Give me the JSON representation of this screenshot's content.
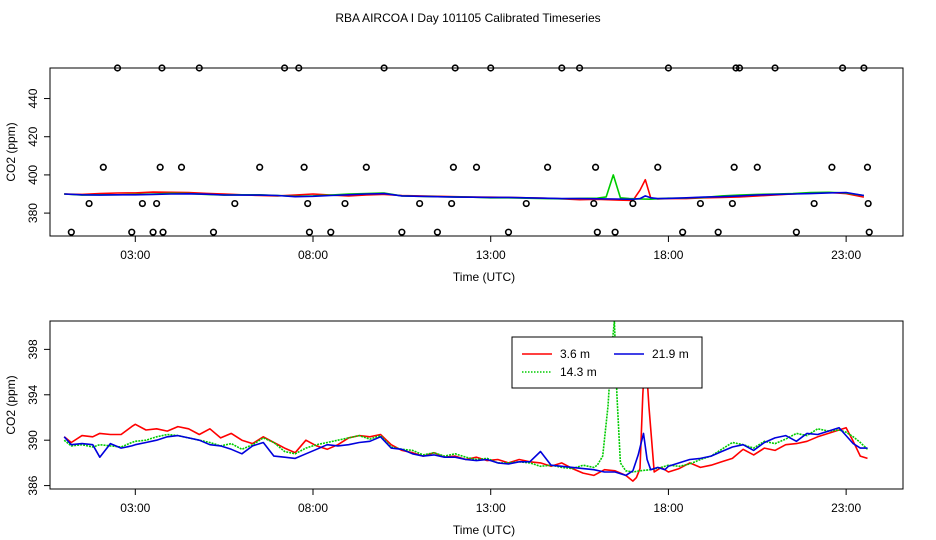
{
  "page": {
    "title": "RBA AIRCOA I  Day 101105  Calibrated Timeseries"
  },
  "chart_data": [
    {
      "type": "line",
      "title": "",
      "xlabel": "Time (UTC)",
      "ylabel": "CO2 (ppm)",
      "xlim": [
        0.6,
        24.6
      ],
      "ylim": [
        368,
        456
      ],
      "x_ticks": [
        3,
        8,
        13,
        18,
        23
      ],
      "x_tick_labels": [
        "03:00",
        "08:00",
        "13:00",
        "18:00",
        "23:00"
      ],
      "y_ticks": [
        380,
        400,
        420,
        440
      ],
      "y_tick_labels": [
        "380",
        "400",
        "420",
        "440"
      ],
      "series": [
        {
          "name": "3.6 m",
          "color": "#ff0000",
          "x": [
            1,
            1.5,
            2,
            2.5,
            3,
            3.5,
            4,
            4.5,
            5,
            5.5,
            6,
            6.5,
            7,
            7.5,
            8,
            8.5,
            9,
            9.5,
            10,
            10.5,
            11,
            11.5,
            12,
            12.5,
            13,
            13.5,
            14,
            14.5,
            15,
            15.5,
            16,
            16.3,
            16.6,
            17,
            17.2,
            17.35,
            17.5,
            17.7,
            18,
            18.5,
            19,
            19.5,
            20,
            20.5,
            21,
            21.5,
            22,
            22.5,
            23,
            23.5
          ],
          "y": [
            390,
            389.8,
            390.2,
            390.5,
            390.6,
            391,
            390.9,
            390.8,
            390.3,
            390,
            389.6,
            389.2,
            389,
            389.5,
            390,
            389.4,
            389,
            389.5,
            389.8,
            389.2,
            389,
            388.8,
            388.6,
            388.4,
            388.3,
            388.2,
            388,
            387.8,
            387.5,
            387,
            387.2,
            387,
            386.8,
            386.6,
            392,
            397.5,
            388,
            387.4,
            387.6,
            387.6,
            388,
            388.2,
            388.5,
            389,
            389.5,
            390,
            390.5,
            390.8,
            390.2,
            388.4
          ]
        },
        {
          "name": "14.3 m",
          "color": "#00cc00",
          "x": [
            1,
            1.5,
            2,
            2.5,
            3,
            3.5,
            4,
            4.5,
            5,
            5.5,
            6,
            6.5,
            7,
            7.5,
            8,
            8.5,
            9,
            9.5,
            10,
            10.5,
            11,
            11.5,
            12,
            12.5,
            13,
            13.5,
            14,
            14.5,
            15,
            15.5,
            16,
            16.25,
            16.45,
            16.65,
            16.9,
            17.2,
            17.5,
            17.8,
            18,
            18.5,
            19,
            19.5,
            20,
            20.5,
            21,
            21.5,
            22,
            22.5,
            23,
            23.5
          ],
          "y": [
            390,
            389.4,
            389.6,
            389.6,
            389.8,
            390,
            390.3,
            390.2,
            389.8,
            389.4,
            389.6,
            389.6,
            389.2,
            388.8,
            389,
            389.5,
            390,
            390.2,
            390.5,
            389,
            388.8,
            388.6,
            388.5,
            388.3,
            388,
            388,
            387.8,
            387.6,
            387.5,
            387.7,
            387.8,
            388.5,
            400,
            388,
            387.6,
            387.4,
            387.3,
            387.6,
            387.8,
            387.9,
            388.2,
            389,
            389.5,
            389.8,
            390,
            390.2,
            390.8,
            390.9,
            390.5,
            389.2
          ]
        },
        {
          "name": "21.9 m",
          "color": "#0000dd",
          "x": [
            1,
            1.5,
            2,
            2.5,
            3,
            3.5,
            4,
            4.5,
            5,
            5.5,
            6,
            6.5,
            7,
            7.5,
            8,
            8.5,
            9,
            9.5,
            10,
            10.5,
            11,
            11.5,
            12,
            12.5,
            13,
            13.5,
            14,
            14.5,
            15,
            15.5,
            16,
            16.5,
            17,
            17.2,
            17.35,
            17.5,
            17.7,
            18,
            18.5,
            19,
            19.5,
            20,
            20.5,
            21,
            21.5,
            22,
            22.5,
            23,
            23.5
          ],
          "y": [
            390,
            389.6,
            389.4,
            389.6,
            389.6,
            389.8,
            390,
            390.1,
            389.9,
            389.5,
            389.4,
            389.4,
            389.2,
            388.6,
            388.8,
            389.2,
            389.6,
            390,
            390.2,
            389,
            388.8,
            388.6,
            388.4,
            388.3,
            388.2,
            388.2,
            388,
            387.8,
            387.6,
            387.6,
            387.5,
            387.4,
            387.2,
            387.6,
            389,
            388,
            387.6,
            387.7,
            388,
            388.4,
            388.6,
            389,
            389.5,
            389.8,
            390,
            390.2,
            390.6,
            390.8,
            389.2
          ]
        }
      ],
      "outliers": {
        "x": [
          1.2,
          1.7,
          2.1,
          2.5,
          2.9,
          3.2,
          3.5,
          3.6,
          3.7,
          3.75,
          3.78,
          4.3,
          4.8,
          5.2,
          5.8,
          6.5,
          7.2,
          7.6,
          7.75,
          7.85,
          7.9,
          8.5,
          8.9,
          9.5,
          10,
          10.5,
          11,
          11.5,
          11.9,
          11.95,
          12,
          12.6,
          13,
          13.5,
          14,
          14.6,
          15,
          15.5,
          15.9,
          15.95,
          16,
          16.5,
          17,
          17.7,
          18,
          18.4,
          18.9,
          19.4,
          19.8,
          19.85,
          19.9,
          20,
          20.5,
          21,
          21.6,
          22.1,
          22.6,
          22.9,
          23.5,
          23.6,
          23.62,
          23.65
        ],
        "y": [
          370,
          385,
          404,
          456,
          370,
          385,
          370,
          385,
          404,
          456,
          370,
          404,
          456,
          370,
          385,
          404,
          456,
          456,
          404,
          385,
          370,
          370,
          385,
          404,
          456,
          370,
          385,
          370,
          385,
          404,
          456,
          404,
          456,
          370,
          385,
          404,
          456,
          456,
          385,
          404,
          370,
          370,
          385,
          404,
          456,
          370,
          385,
          370,
          385,
          404,
          456,
          456,
          404,
          456,
          370,
          385,
          404,
          456,
          456,
          404,
          385,
          370
        ]
      }
    },
    {
      "type": "line",
      "title": "",
      "xlabel": "Time (UTC)",
      "ylabel": "CO2 (ppm)",
      "xlim": [
        0.6,
        24.6
      ],
      "ylim": [
        385.7,
        400.5
      ],
      "x_ticks": [
        3,
        8,
        13,
        18,
        23
      ],
      "x_tick_labels": [
        "03:00",
        "08:00",
        "13:00",
        "18:00",
        "23:00"
      ],
      "y_ticks": [
        386,
        390,
        394,
        398
      ],
      "y_tick_labels": [
        "386",
        "390",
        "394",
        "398"
      ],
      "legend": {
        "position": "top-center",
        "entries": [
          {
            "label": "3.6 m",
            "color": "#ff0000",
            "dash": "solid"
          },
          {
            "label": "21.9 m",
            "color": "#0000dd",
            "dash": "solid"
          },
          {
            "label": "14.3 m",
            "color": "#00cc00",
            "dash": "dotted"
          }
        ]
      },
      "series": [
        {
          "name": "3.6 m",
          "color": "#ff0000",
          "x": [
            1,
            1.2,
            1.5,
            1.8,
            2,
            2.3,
            2.6,
            2.9,
            3,
            3.3,
            3.6,
            3.9,
            4.2,
            4.5,
            4.8,
            5.1,
            5.4,
            5.7,
            6,
            6.3,
            6.6,
            6.9,
            7.2,
            7.5,
            7.8,
            8.1,
            8.4,
            8.7,
            9,
            9.3,
            9.6,
            9.9,
            10.2,
            10.5,
            10.8,
            11.1,
            11.4,
            11.7,
            12,
            12.3,
            12.6,
            12.9,
            13.2,
            13.5,
            13.8,
            14.1,
            14.4,
            14.7,
            15,
            15.3,
            15.6,
            15.9,
            16.2,
            16.5,
            16.8,
            17,
            17.1,
            17.2,
            17.28,
            17.35,
            17.45,
            17.6,
            17.8,
            18,
            18.3,
            18.6,
            18.9,
            19.2,
            19.5,
            19.8,
            20.1,
            20.4,
            20.7,
            21,
            21.3,
            21.6,
            21.9,
            22.2,
            22.5,
            22.8,
            23,
            23.2,
            23.4,
            23.6
          ],
          "y": [
            390.3,
            389.8,
            390.4,
            390.3,
            390.6,
            390.5,
            390.5,
            391.2,
            391.4,
            390.9,
            391,
            390.8,
            391.2,
            391,
            390.5,
            391,
            390.2,
            390.6,
            390,
            389.7,
            390.3,
            389.8,
            389.3,
            388.9,
            390,
            389.5,
            389.2,
            389.6,
            390.2,
            390.4,
            390.3,
            390.5,
            389.6,
            389.1,
            388.9,
            388.6,
            388.9,
            388.5,
            388.6,
            388.3,
            388.5,
            388.2,
            388.3,
            388,
            388.3,
            388.1,
            388,
            387.7,
            388,
            387.5,
            387.1,
            386.9,
            387.4,
            387.3,
            386.9,
            386.4,
            386.7,
            387.5,
            394,
            398,
            393,
            387.2,
            387.6,
            387.2,
            387.5,
            388,
            387.6,
            387.8,
            388.1,
            388.4,
            389.2,
            388.7,
            389.3,
            389.1,
            389.6,
            389.7,
            389.9,
            390.3,
            390.6,
            390.9,
            391.1,
            389.9,
            388.6,
            388.4
          ]
        },
        {
          "name": "14.3 m",
          "color": "#00cc00",
          "x": [
            1,
            1.2,
            1.5,
            1.8,
            2,
            2.3,
            2.6,
            2.9,
            3,
            3.3,
            3.6,
            3.9,
            4.2,
            4.5,
            4.8,
            5.1,
            5.4,
            5.7,
            6,
            6.3,
            6.6,
            6.9,
            7.2,
            7.5,
            7.8,
            8.1,
            8.4,
            8.7,
            9,
            9.3,
            9.6,
            9.9,
            10.2,
            10.5,
            10.8,
            11.1,
            11.4,
            11.7,
            12,
            12.3,
            12.6,
            12.9,
            13.2,
            13.5,
            13.8,
            14.1,
            14.4,
            14.7,
            15,
            15.3,
            15.6,
            15.9,
            16,
            16.15,
            16.3,
            16.4,
            16.48,
            16.55,
            16.65,
            16.8,
            17,
            17.2,
            17.5,
            17.8,
            18,
            18.3,
            18.6,
            18.9,
            19.2,
            19.5,
            19.8,
            20.1,
            20.4,
            20.7,
            21,
            21.3,
            21.6,
            21.9,
            22.2,
            22.5,
            22.8,
            23,
            23.2,
            23.4,
            23.6
          ],
          "y": [
            390,
            389.5,
            389.6,
            389.4,
            389.6,
            389.5,
            389.4,
            389.8,
            389.9,
            390,
            390.3,
            390.5,
            390.4,
            390.2,
            390,
            389.8,
            389.5,
            389.7,
            389.2,
            389.6,
            390.2,
            389.8,
            389,
            388.8,
            389.3,
            389.6,
            389.8,
            390,
            390.2,
            390.4,
            390.1,
            390.4,
            389.4,
            389.2,
            389.1,
            388.7,
            388.9,
            388.6,
            388.8,
            388.5,
            388.3,
            388.4,
            388,
            388,
            388.1,
            388,
            387.7,
            387.8,
            387.6,
            387.5,
            387.8,
            387.6,
            387.8,
            388.6,
            393,
            398,
            400.5,
            394,
            388,
            387.3,
            387.2,
            387.3,
            387.4,
            387.6,
            387.8,
            387.7,
            387.9,
            388.3,
            388.6,
            389.2,
            389.8,
            389.6,
            389.3,
            389.9,
            389.7,
            390.1,
            390.6,
            390.4,
            391,
            390.8,
            390.9,
            390.7,
            390.3,
            389.8,
            389.2
          ]
        },
        {
          "name": "21.9 m",
          "color": "#0000dd",
          "x": [
            1,
            1.2,
            1.5,
            1.8,
            2,
            2.3,
            2.6,
            2.9,
            3,
            3.3,
            3.6,
            3.9,
            4.2,
            4.5,
            4.8,
            5.1,
            5.4,
            5.7,
            6,
            6.3,
            6.6,
            6.9,
            7.2,
            7.5,
            7.8,
            8.1,
            8.4,
            8.7,
            9,
            9.3,
            9.6,
            9.9,
            10.2,
            10.5,
            10.8,
            11.1,
            11.4,
            11.7,
            12,
            12.3,
            12.6,
            12.9,
            13.2,
            13.5,
            13.8,
            14.1,
            14.4,
            14.7,
            15,
            15.3,
            15.6,
            15.9,
            16.2,
            16.5,
            16.8,
            17,
            17.15,
            17.3,
            17.4,
            17.5,
            17.7,
            17.9,
            18,
            18.3,
            18.6,
            18.9,
            19.2,
            19.5,
            19.8,
            20.1,
            20.4,
            20.7,
            21,
            21.3,
            21.6,
            21.9,
            22.2,
            22.5,
            22.8,
            23,
            23.2,
            23.4,
            23.6
          ],
          "y": [
            390.3,
            389.6,
            389.7,
            389.6,
            388.5,
            389.7,
            389.3,
            389.5,
            389.6,
            389.8,
            390,
            390.3,
            390.4,
            390.2,
            390,
            389.6,
            389.5,
            389.2,
            388.8,
            389.5,
            389.8,
            388.6,
            388.5,
            388.4,
            388.8,
            389.2,
            389.6,
            389.5,
            389.6,
            389.8,
            389.9,
            390.3,
            389.3,
            389.2,
            388.8,
            388.6,
            388.7,
            388.5,
            388.5,
            388.3,
            388.2,
            388.3,
            388,
            387.9,
            388.1,
            388.1,
            389,
            387.8,
            387.7,
            387.6,
            387.5,
            387.4,
            387.2,
            387.2,
            386.9,
            387.3,
            388.7,
            390.6,
            388.3,
            387.4,
            387.6,
            387.4,
            387.7,
            388,
            388.3,
            388.4,
            388.6,
            389,
            389.4,
            389.6,
            389.1,
            389.8,
            390.2,
            390.4,
            389.9,
            390.6,
            390.5,
            390.8,
            391.1,
            390.4,
            389.7,
            389.3,
            389.3
          ]
        }
      ]
    }
  ]
}
